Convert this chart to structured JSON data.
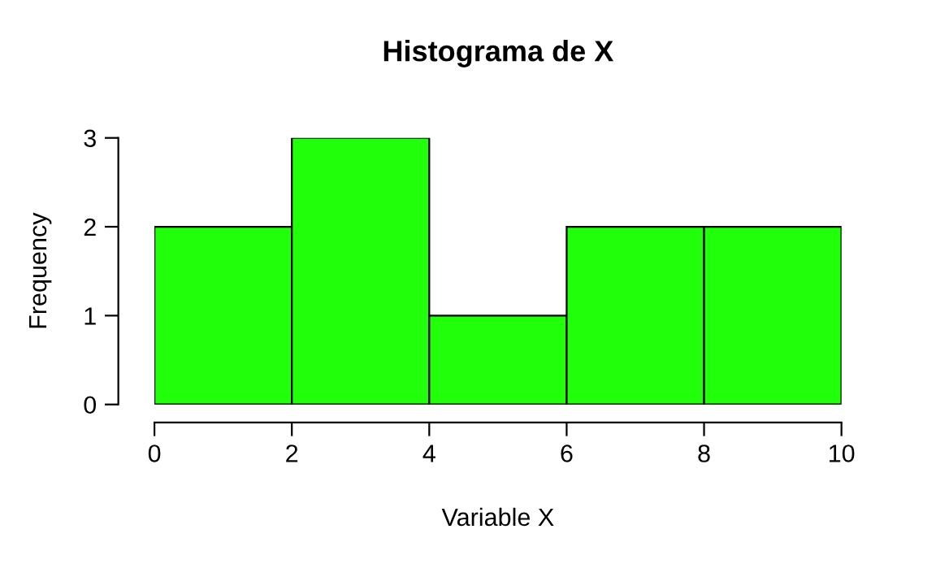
{
  "chart_data": {
    "type": "histogram",
    "title": "Histograma de X",
    "xlabel": "Variable X",
    "ylabel": "Frequency",
    "bins": [
      0,
      2,
      4,
      6,
      8,
      10
    ],
    "values": [
      2,
      3,
      1,
      2,
      2
    ],
    "color": "#22ff0b",
    "xlim": [
      0,
      10
    ],
    "ylim": [
      0,
      3
    ],
    "xticks": [
      0,
      2,
      4,
      6,
      8,
      10
    ],
    "yticks": [
      0,
      1,
      2,
      3
    ],
    "grid": false,
    "legend": false
  }
}
